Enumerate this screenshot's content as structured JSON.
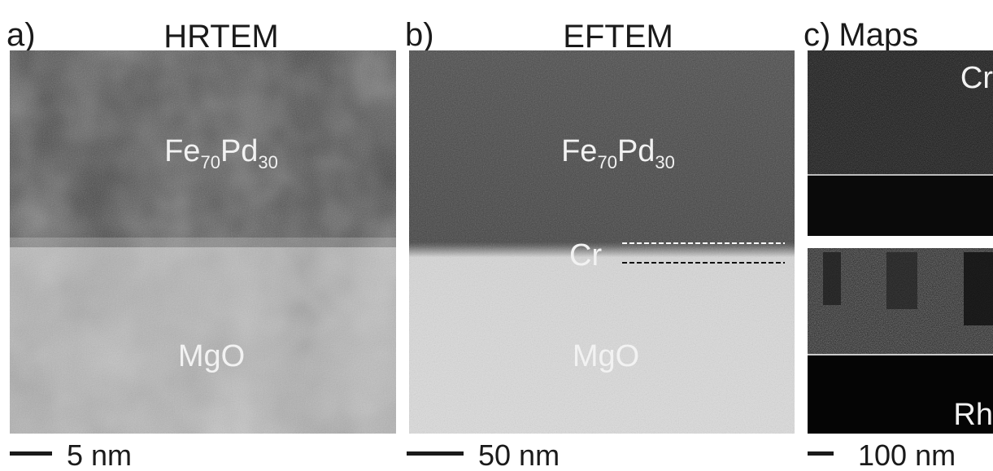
{
  "panels": [
    {
      "label": "a)",
      "title": "HRTEM",
      "top_layer": {
        "base1": "Fe",
        "sub1": "70",
        "base2": "Pd",
        "sub2": "30"
      },
      "substrate": "MgO",
      "scale_bar": "5 nm"
    },
    {
      "label": "b)",
      "title": "EFTEM",
      "top_layer": {
        "base1": "Fe",
        "sub1": "70",
        "base2": "Pd",
        "sub2": "30"
      },
      "interlayer": "Cr",
      "substrate": "MgO",
      "scale_bar": "50 nm"
    },
    {
      "label": "c)",
      "title": "Maps",
      "maps": [
        "Cr",
        "Rh"
      ],
      "scale_bar": "100 nm"
    }
  ]
}
